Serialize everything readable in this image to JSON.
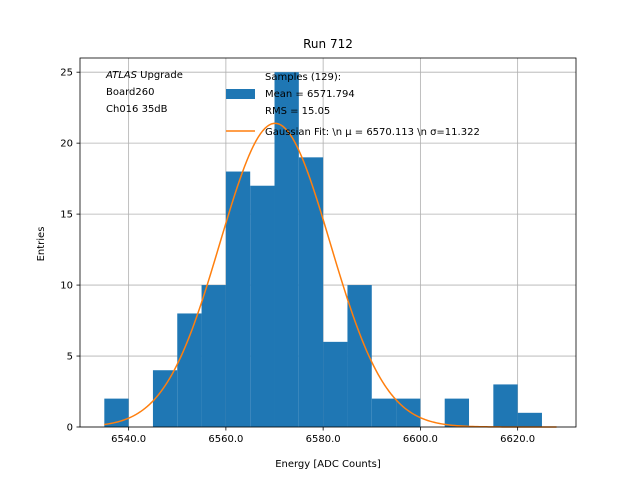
{
  "chart_data": {
    "type": "bar",
    "title": "Run 712",
    "xlabel": "Energy [ADC Counts]",
    "ylabel": "Entries",
    "xlim": [
      6530,
      6632
    ],
    "ylim": [
      0,
      26
    ],
    "grid": true,
    "xticks": [
      6540,
      6560,
      6580,
      6600,
      6620
    ],
    "xtick_labels": [
      "6540.0",
      "6560.0",
      "6580.0",
      "6600.0",
      "6620.0"
    ],
    "yticks": [
      0,
      5,
      10,
      15,
      20,
      25
    ],
    "ytick_labels": [
      "0",
      "5",
      "10",
      "15",
      "20",
      "25"
    ],
    "annotation": {
      "italic": "ATLAS",
      "rest": " Upgrade",
      "line2": " Board260",
      "line3": " Ch016 35dB"
    },
    "histogram": {
      "name": "Samples (129):\n Mean = 6571.794\n RMS = 15.05",
      "color": "#1f77b4",
      "bin_edges": [
        6535,
        6540,
        6545,
        6550,
        6555,
        6560,
        6565,
        6570,
        6575,
        6580,
        6585,
        6590,
        6595,
        6600,
        6605,
        6610,
        6615,
        6620,
        6625
      ],
      "counts": [
        2,
        0,
        4,
        8,
        10,
        18,
        17,
        25,
        19,
        6,
        10,
        2,
        2,
        0,
        2,
        0,
        3,
        1
      ]
    },
    "fit": {
      "name": "Gaussian Fit: \\n μ = 6570.113 \\n σ=11.322",
      "color": "#ff7f0e",
      "mu": 6570.113,
      "sigma": 11.322,
      "amplitude": 21.4,
      "x_range": [
        6535,
        6628
      ]
    },
    "legend_placement": "top-right"
  }
}
